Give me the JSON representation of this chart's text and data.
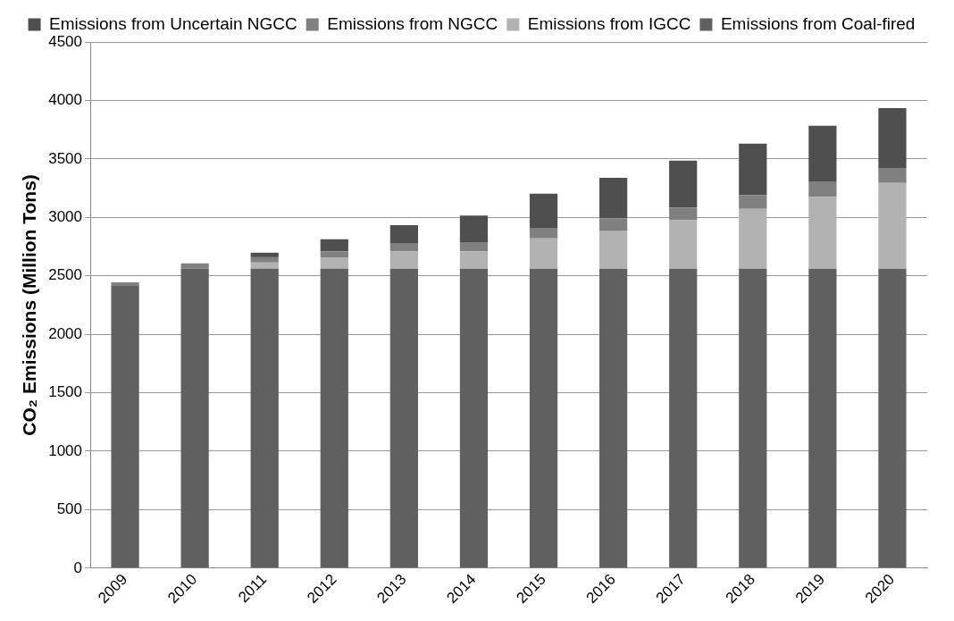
{
  "chart_data": {
    "type": "bar",
    "stacked": true,
    "ylabel": "CO₂ Emissions (Million Tons)",
    "categories": [
      "2009",
      "2010",
      "2011",
      "2012",
      "2013",
      "2014",
      "2015",
      "2016",
      "2017",
      "2018",
      "2019",
      "2020"
    ],
    "series": [
      {
        "name": "Emissions from Coal-fired",
        "color": "#606060",
        "values": [
          2420,
          2560,
          2560,
          2560,
          2560,
          2560,
          2560,
          2560,
          2560,
          2560,
          2560,
          2560
        ]
      },
      {
        "name": "Emissions from IGCC",
        "color": "#b2b2b2",
        "values": [
          0,
          null,
          54,
          98,
          149,
          150,
          260,
          322,
          415,
          513,
          615,
          734
        ]
      },
      {
        "name": "Emissions from NGCC",
        "color": "#808080",
        "values": [
          25,
          47,
          45,
          51,
          66,
          72,
          84,
          110,
          110,
          116,
          128,
          128
        ]
      },
      {
        "name": "Emissions from Uncertain NGCC",
        "color": "#4f4f4f",
        "values": [
          0,
          0,
          39,
          104,
          158,
          233,
          299,
          346,
          400,
          442,
          481,
          513
        ]
      }
    ],
    "ylim": [
      0,
      4500
    ],
    "yticks": [
      0,
      500,
      1000,
      1500,
      2000,
      2500,
      3000,
      3500,
      4000,
      4500
    ],
    "grid": "y",
    "legend": "top"
  }
}
